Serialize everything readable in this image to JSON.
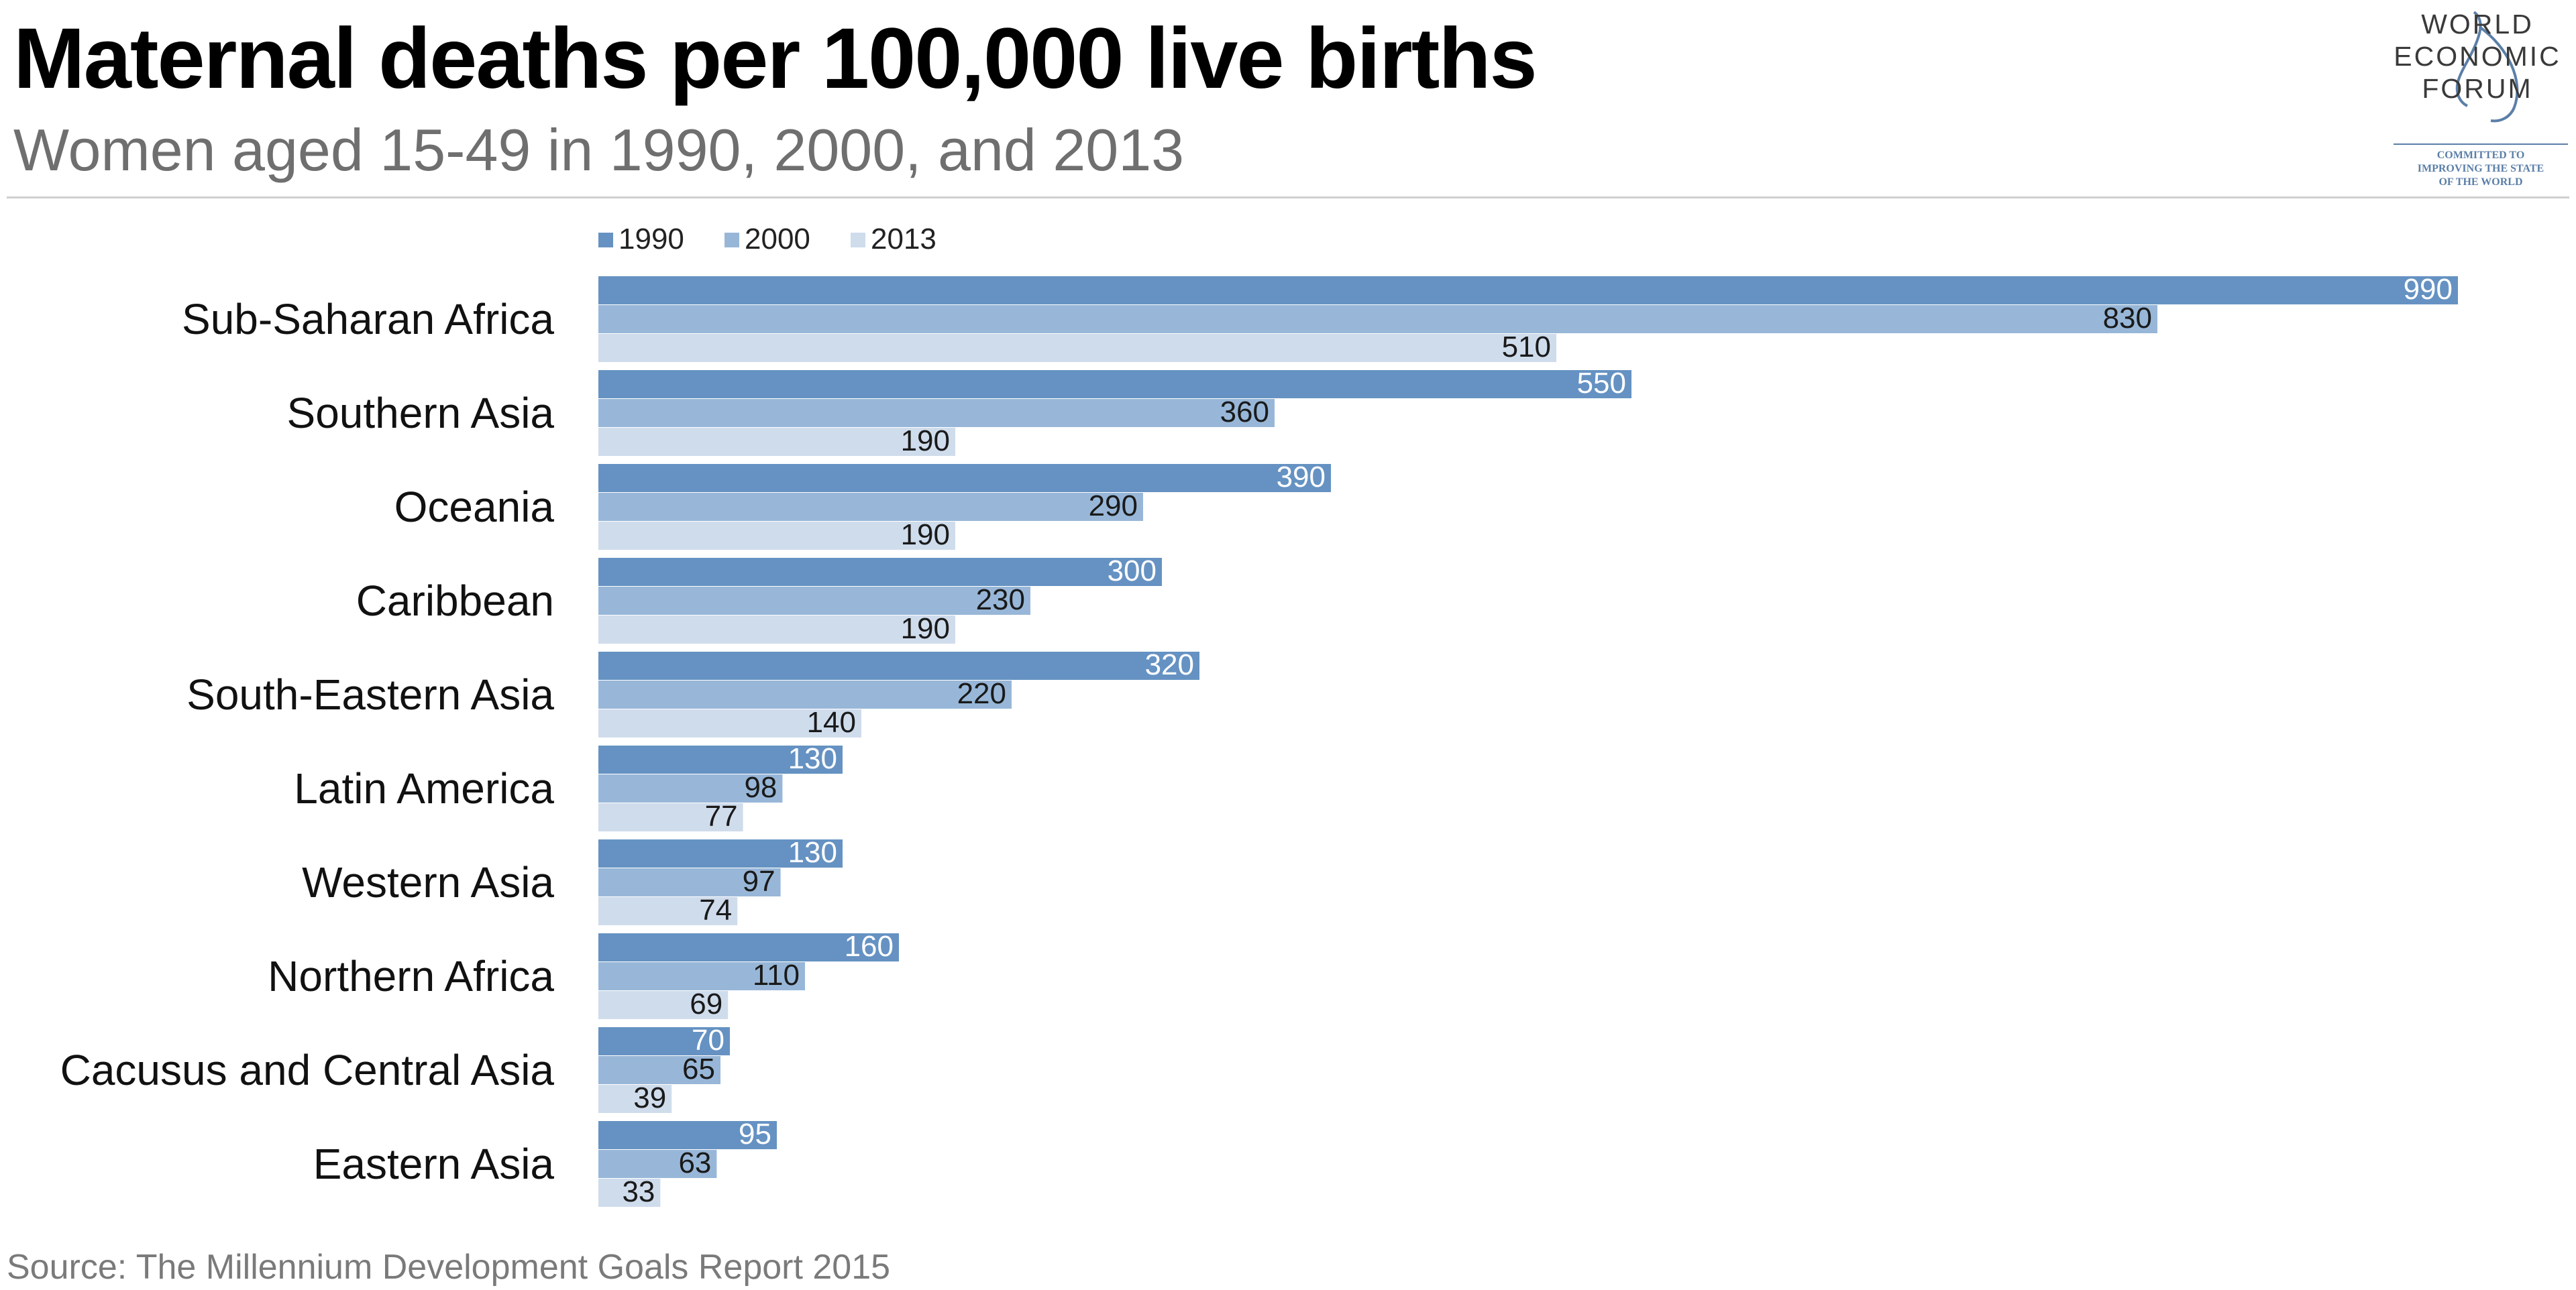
{
  "header": {
    "title": "Maternal deaths per 100,000 live births",
    "subtitle": "Women aged 15-49 in 1990, 2000, and 2013"
  },
  "logo": {
    "line1": "WORLD",
    "line2": "ECONOMIC",
    "line3": "FORUM",
    "tagline1": "COMMITTED TO",
    "tagline2": "IMPROVING THE STATE",
    "tagline3": "OF THE WORLD"
  },
  "footer": {
    "source": "Source: The Millennium Development Goals Report 2015"
  },
  "colors": {
    "1990": "#6592c2",
    "2000": "#98b7d8",
    "2013": "#cfdcec"
  },
  "chart_data": {
    "type": "bar",
    "orientation": "horizontal",
    "title": "Maternal deaths per 100,000 live births",
    "subtitle": "Women aged 15-49 in 1990, 2000, and 2013",
    "legend_position": "top-left",
    "xlim": [
      0,
      1000
    ],
    "grid": false,
    "categories": [
      "Sub-Saharan Africa",
      "Southern Asia",
      "Oceania",
      "Caribbean",
      "South-Eastern Asia",
      "Latin America",
      "Western Asia",
      "Northern Africa",
      "Cacusus and Central Asia",
      "Eastern Asia"
    ],
    "series": [
      {
        "name": "1990",
        "values": [
          990,
          550,
          390,
          300,
          320,
          130,
          130,
          160,
          70,
          95
        ]
      },
      {
        "name": "2000",
        "values": [
          830,
          360,
          290,
          230,
          220,
          98,
          97,
          110,
          65,
          63
        ]
      },
      {
        "name": "2013",
        "values": [
          510,
          190,
          190,
          190,
          140,
          77,
          74,
          69,
          39,
          33
        ]
      }
    ]
  }
}
